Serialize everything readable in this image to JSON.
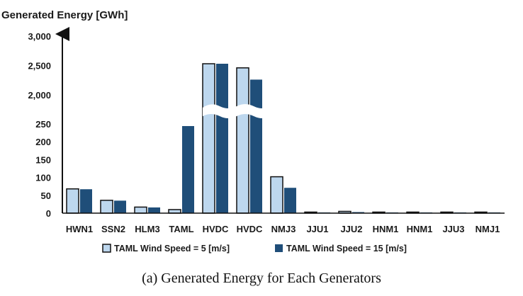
{
  "chart_data": {
    "type": "bar",
    "ylabel": "Generated Energy [GWh]",
    "caption": "(a) Generated Energy for Each Generators",
    "categories": [
      "HWN1",
      "SSN2",
      "HLM3",
      "TAML",
      "HVDC",
      "HVDC",
      "NMJ3",
      "JJU1",
      "JJU2",
      "HNM1",
      "HNM1",
      "JJU3",
      "NMJ1"
    ],
    "series": [
      {
        "name": "TAML Wind Speed = 5 [m/s]",
        "color": "#bdd7ee",
        "values": [
          68,
          36,
          17,
          10,
          2530,
          2460,
          102,
          3,
          5,
          3,
          3,
          3,
          3
        ]
      },
      {
        "name": "TAML Wind Speed = 15 [m/s]",
        "color": "#1f4e79",
        "values": [
          67,
          35,
          16,
          244,
          2530,
          2260,
          71,
          2,
          3,
          2,
          2,
          2,
          2
        ]
      }
    ],
    "y_axis_break": {
      "lower_ticks": [
        "0",
        "50",
        "100",
        "150",
        "200",
        "250"
      ],
      "upper_ticks": [
        "2,000",
        "2,500",
        "3,000"
      ],
      "lower_range": [
        0,
        250
      ],
      "upper_range": [
        2000,
        3000
      ]
    },
    "grid": false,
    "legend_position": "bottom"
  }
}
